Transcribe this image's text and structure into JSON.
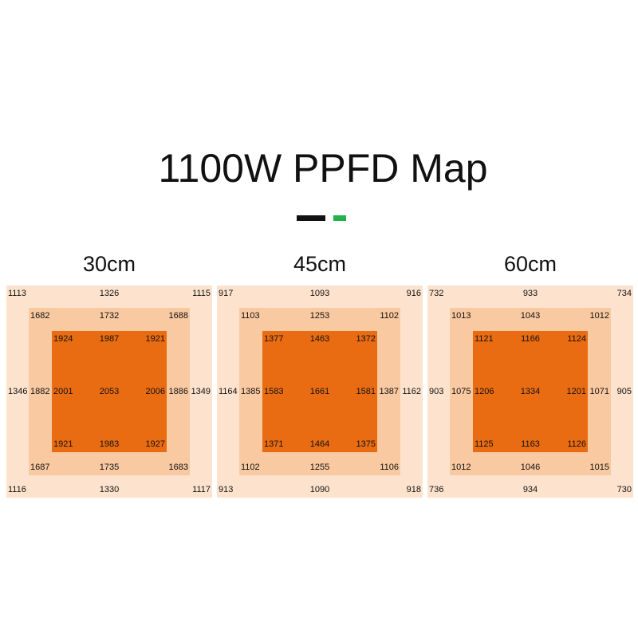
{
  "title": "1100W PPFD Map",
  "maps": [
    {
      "label": "30cm",
      "outer": [
        1113,
        1326,
        1115,
        1346,
        1349,
        1116,
        1330,
        1117
      ],
      "middle": [
        1682,
        1732,
        1688,
        1882,
        1886,
        1687,
        1735,
        1683
      ],
      "inner": [
        1924,
        1987,
        1921,
        2001,
        2006,
        1921,
        1983,
        1927
      ],
      "center": 2053
    },
    {
      "label": "45cm",
      "outer": [
        917,
        1093,
        916,
        1164,
        1162,
        913,
        1090,
        918
      ],
      "middle": [
        1103,
        1253,
        1102,
        1385,
        1387,
        1102,
        1255,
        1106
      ],
      "inner": [
        1377,
        1463,
        1372,
        1583,
        1581,
        1371,
        1464,
        1375
      ],
      "center": 1661
    },
    {
      "label": "60cm",
      "outer": [
        732,
        933,
        734,
        903,
        905,
        736,
        934,
        730
      ],
      "middle": [
        1013,
        1043,
        1012,
        1075,
        1071,
        1012,
        1046,
        1015
      ],
      "inner": [
        1121,
        1166,
        1124,
        1206,
        1201,
        1125,
        1163,
        1126
      ],
      "center": 1334
    }
  ]
}
